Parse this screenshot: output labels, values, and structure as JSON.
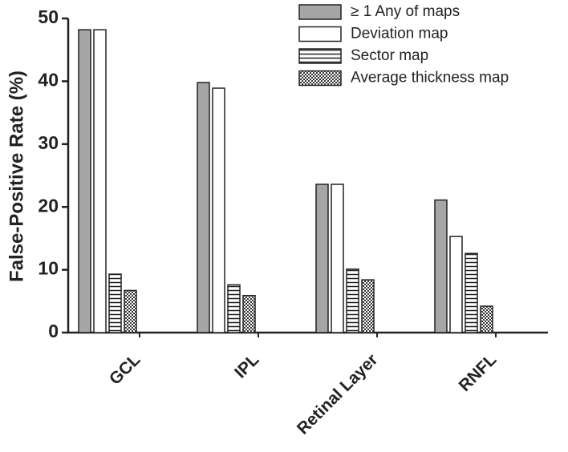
{
  "chart_data": {
    "type": "bar",
    "y_label": "False-Positive Rate (%)",
    "categories": [
      "GCL",
      "IPL",
      "Retinal Layer",
      "RNFL"
    ],
    "series": [
      {
        "name": "≥ 1 Any of maps",
        "color": "#a6a6a6",
        "pattern": "solid",
        "values": [
          48.2,
          39.8,
          23.6,
          21.1
        ]
      },
      {
        "name": "Deviation map",
        "color": "#ffffff",
        "pattern": "solid",
        "values": [
          48.2,
          38.9,
          23.6,
          15.3
        ]
      },
      {
        "name": "Sector map",
        "color": "#ffffff",
        "pattern": "horizontal-stripes",
        "values": [
          9.3,
          7.6,
          10.1,
          12.6
        ]
      },
      {
        "name": "Average thickness map",
        "color": "#ffffff",
        "pattern": "checker",
        "values": [
          6.7,
          5.9,
          8.4,
          4.2
        ]
      }
    ],
    "ylim": [
      0,
      50
    ],
    "yticks": [
      0,
      10,
      20,
      30,
      40,
      50
    ],
    "grid": false,
    "legend": "top-right"
  }
}
